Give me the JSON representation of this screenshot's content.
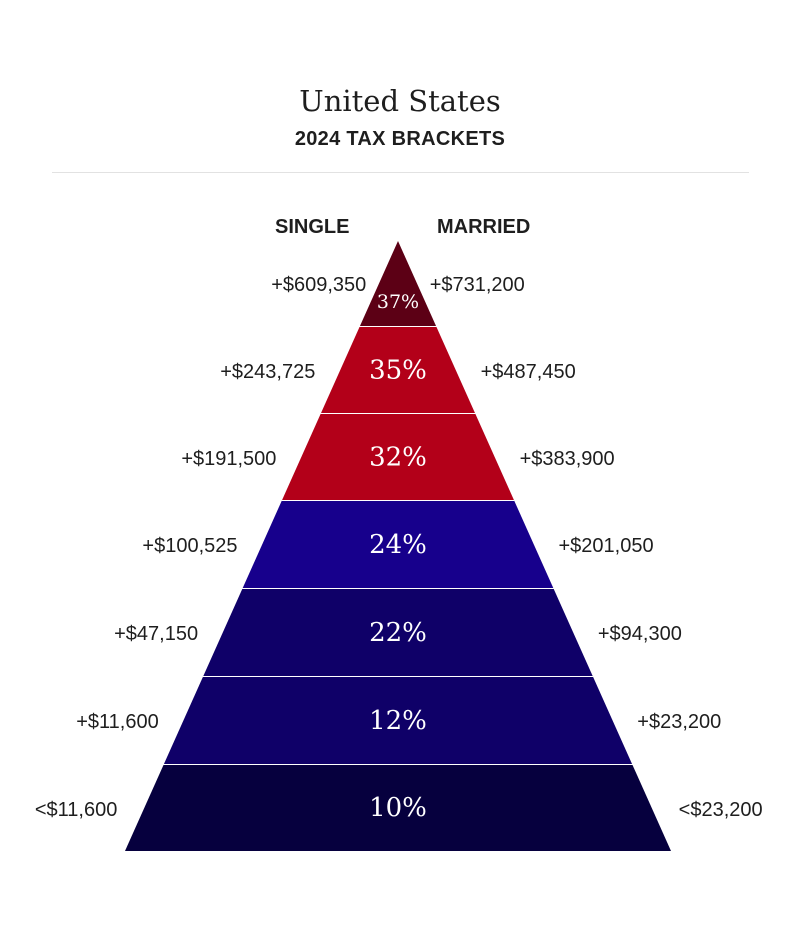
{
  "header": {
    "title": "United States",
    "subtitle": "2024 TAX BRACKETS"
  },
  "columns": {
    "single": "SINGLE",
    "married": "MARRIED"
  },
  "brackets": [
    {
      "rate": "37%",
      "single": "+$609,350",
      "married": "+$731,200",
      "color": "#5c0015"
    },
    {
      "rate": "35%",
      "single": "+$243,725",
      "married": "+$487,450",
      "color": "#b30019"
    },
    {
      "rate": "32%",
      "single": "+$191,500",
      "married": "+$383,900",
      "color": "#b30019"
    },
    {
      "rate": "24%",
      "single": "+$100,525",
      "married": "+$201,050",
      "color": "#17008c"
    },
    {
      "rate": "22%",
      "single": "+$47,150",
      "married": "+$94,300",
      "color": "#0f0068"
    },
    {
      "rate": "12%",
      "single": "+$11,600",
      "married": "+$23,200",
      "color": "#0f0068"
    },
    {
      "rate": "10%",
      "single": "<$11,600",
      "married": "<$23,200",
      "color": "#06003e"
    }
  ]
}
